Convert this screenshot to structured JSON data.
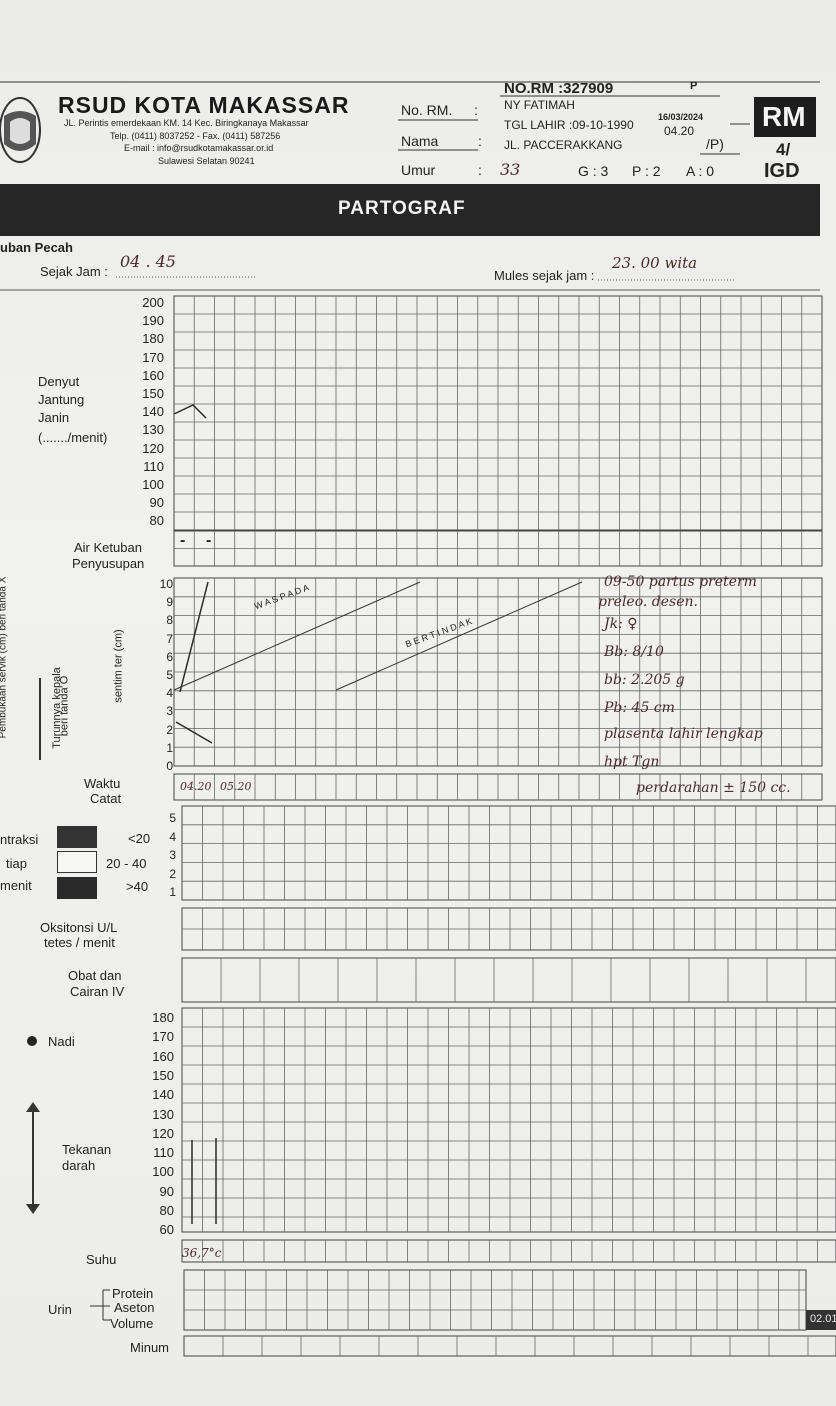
{
  "header": {
    "norm": "NO.RM :327909",
    "p_mark": "P",
    "hospital": "RSUD KOTA MAKASSAR",
    "address1": "JL. Perintis   emerdekaan KM. 14 Kec. Biringkanaya Makassar",
    "address2": "Telp. (0411) 8037252 - Fax. (0411) 587256",
    "address3": "E-mail : info@rsudkotamakassar.or.id",
    "address4": "Sulawesi Selatan 90241",
    "label_norm": "No. RM.",
    "label_nama": "Nama",
    "label_umur": "Umur",
    "colon": ":",
    "patient_name": "NY FATIMAH",
    "dob": "TGL LAHIR :09-10-1990",
    "date": "16/03/2024",
    "time": "04.20",
    "street": "JL. PACCERAKKANG",
    "p_paren": "/P)",
    "age": "33",
    "g_label": "G : 3",
    "p_label": "P : 2",
    "a_label": "A : 0",
    "rm_badge": "RM",
    "num_badge": "4/",
    "igd_badge": "IGD"
  },
  "title": "PARTOGRAF",
  "membrane": {
    "label": "uban Pecah",
    "since_label": "Sejak Jam :",
    "since_value": "04 . 45",
    "mules_label": "Mules sejak jam :",
    "mules_value": "23. 00 wita"
  },
  "fhr": {
    "label": [
      "Denyut",
      "Jantung",
      "Janin",
      "(......./menit)"
    ],
    "scale": [
      "200",
      "190",
      "180",
      "170",
      "160",
      "150",
      "140",
      "130",
      "120",
      "110",
      "100",
      "90",
      "80"
    ]
  },
  "amniotic": {
    "label1": "Air Ketuban",
    "label2": "Penyusupan",
    "marks": [
      "-",
      "-"
    ]
  },
  "cervix": {
    "side_label": "Pembukaan servik (cm) beri tanda X",
    "turun_label": "Turunnya kepala",
    "turun_label2": "beri tanda O",
    "sentim_label": "sentim ter (cm)",
    "scale": [
      "10",
      "9",
      "8",
      "7",
      "6",
      "5",
      "4",
      "3",
      "2",
      "1",
      "0"
    ],
    "waspada": "W A S P A D A",
    "bertindak": "B E R T I N D A K",
    "waktu": "Waktu",
    "catat": "Catat",
    "times": [
      "04.20",
      "05.20"
    ]
  },
  "notes": [
    "09-50 partus preterm",
    "preleo. desen.",
    "Jk: ♀",
    "Bb: 8/10",
    "bb: 2.205 g",
    "Pb: 45 cm",
    "plasenta lahir lengkap",
    "hpt Tgn",
    "perdarahan ± 150 cc."
  ],
  "contractions": {
    "label1": "ntraksi",
    "label2": "tiap",
    "label3": "menit",
    "legend": [
      "<20",
      "20 - 40",
      ">40"
    ],
    "scale": [
      "5",
      "4",
      "3",
      "2",
      "1"
    ]
  },
  "oxytocin": {
    "label1": "Oksitonsi U/L",
    "label2": "tetes / menit"
  },
  "drugs": {
    "label1": "Obat dan",
    "label2": "Cairan IV"
  },
  "vitals": {
    "nadi": "Nadi",
    "tekanan1": "Tekanan",
    "tekanan2": "darah",
    "scale": [
      "180",
      "170",
      "160",
      "150",
      "140",
      "130",
      "120",
      "110",
      "100",
      "90",
      "80",
      "60"
    ]
  },
  "suhu": {
    "label": "Suhu",
    "value": "36,7°c"
  },
  "urin": {
    "label": "Urin",
    "protein": "Protein",
    "aseton": "Aseton",
    "volume": "Volume",
    "tab": "02.01"
  },
  "minum": {
    "label": "Minum"
  }
}
